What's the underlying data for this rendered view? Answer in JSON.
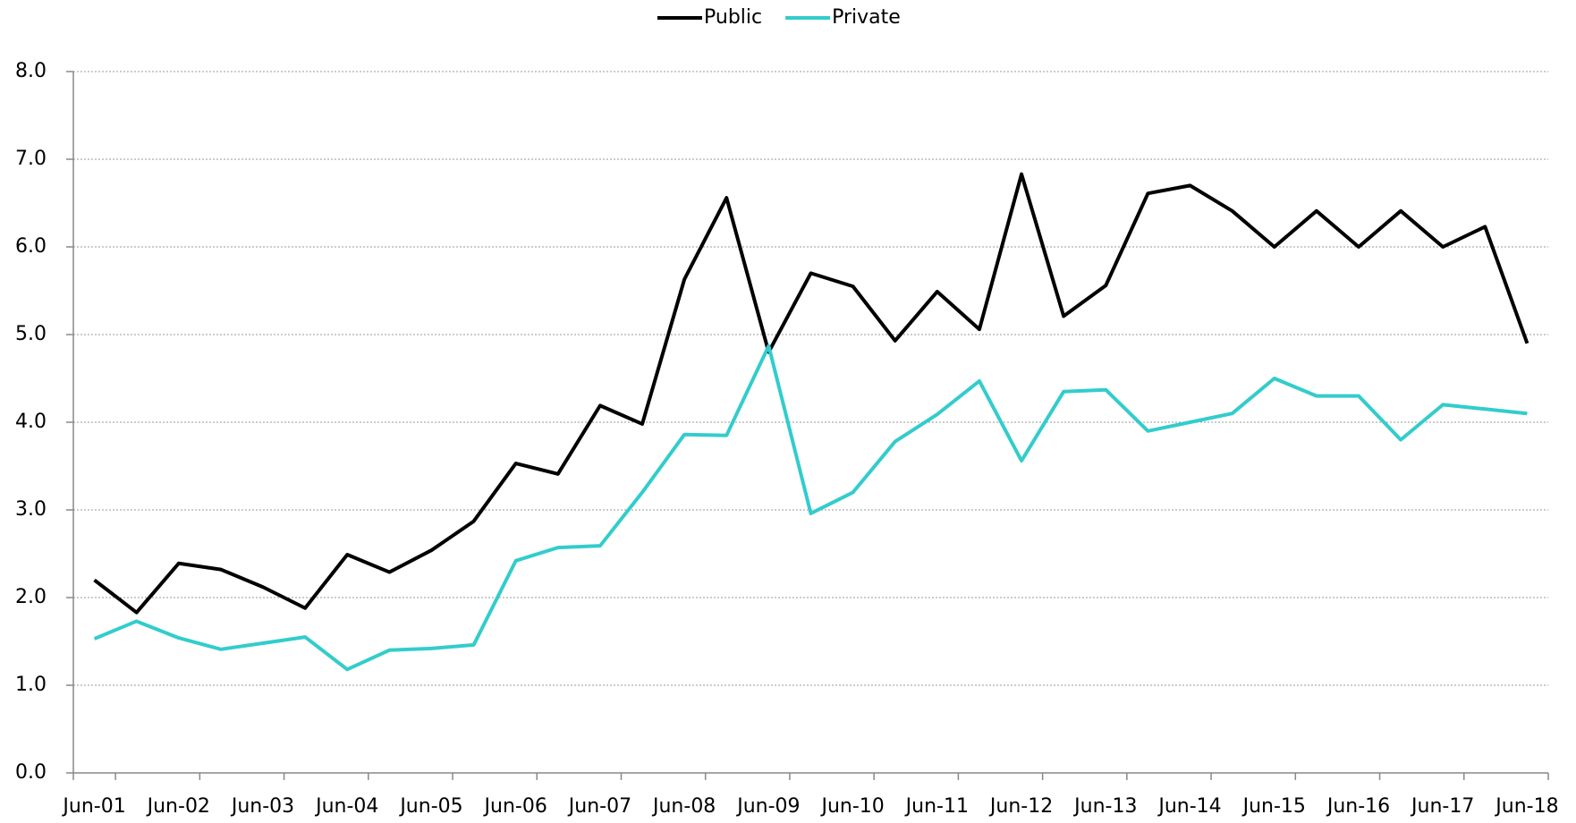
{
  "chart_data": {
    "type": "line",
    "categories": [
      "Jun-01",
      null,
      "Jun-02",
      null,
      "Jun-03",
      null,
      "Jun-04",
      null,
      "Jun-05",
      null,
      "Jun-06",
      null,
      "Jun-07",
      null,
      "Jun-08",
      null,
      "Jun-09",
      null,
      "Jun-10",
      null,
      "Jun-11",
      null,
      "Jun-12",
      null,
      "Jun-13",
      null,
      "Jun-14",
      null,
      "Jun-15",
      null,
      "Jun-16",
      null,
      "Jun-17",
      null,
      "Jun-18"
    ],
    "series": [
      {
        "name": "Public",
        "color": "#000000",
        "values": [
          2.2,
          1.83,
          2.39,
          2.32,
          2.12,
          1.88,
          2.49,
          2.29,
          2.54,
          2.87,
          3.53,
          3.41,
          4.19,
          3.98,
          5.63,
          6.56,
          4.8,
          5.7,
          5.55,
          4.93,
          5.49,
          5.06,
          6.83,
          5.21,
          5.56,
          6.61,
          6.7,
          6.41,
          6.0,
          6.41,
          6.0,
          6.41,
          6.0,
          6.23,
          4.9
        ]
      },
      {
        "name": "Private",
        "color": "#33cccc",
        "values": [
          1.53,
          1.73,
          1.54,
          1.41,
          1.48,
          1.55,
          1.18,
          1.4,
          1.42,
          1.46,
          2.42,
          2.57,
          2.59,
          3.2,
          3.86,
          3.85,
          4.87,
          2.96,
          3.2,
          3.78,
          4.09,
          4.47,
          3.56,
          4.35,
          4.37,
          3.9,
          4.0,
          4.1,
          4.5,
          4.3,
          4.3,
          3.8,
          4.2,
          4.15,
          4.1
        ]
      }
    ],
    "ylim": [
      0,
      8
    ],
    "yticks": [
      {
        "value": 0,
        "label": "0.0"
      },
      {
        "value": 1,
        "label": "1.0"
      },
      {
        "value": 2,
        "label": "2.0"
      },
      {
        "value": 3,
        "label": "3.0"
      },
      {
        "value": 4,
        "label": "4.0"
      },
      {
        "value": 5,
        "label": "5.0"
      },
      {
        "value": 6,
        "label": "6.0"
      },
      {
        "value": 7,
        "label": "7.0"
      },
      {
        "value": 8,
        "label": "8.0"
      }
    ],
    "grid": true,
    "legend": "top"
  }
}
